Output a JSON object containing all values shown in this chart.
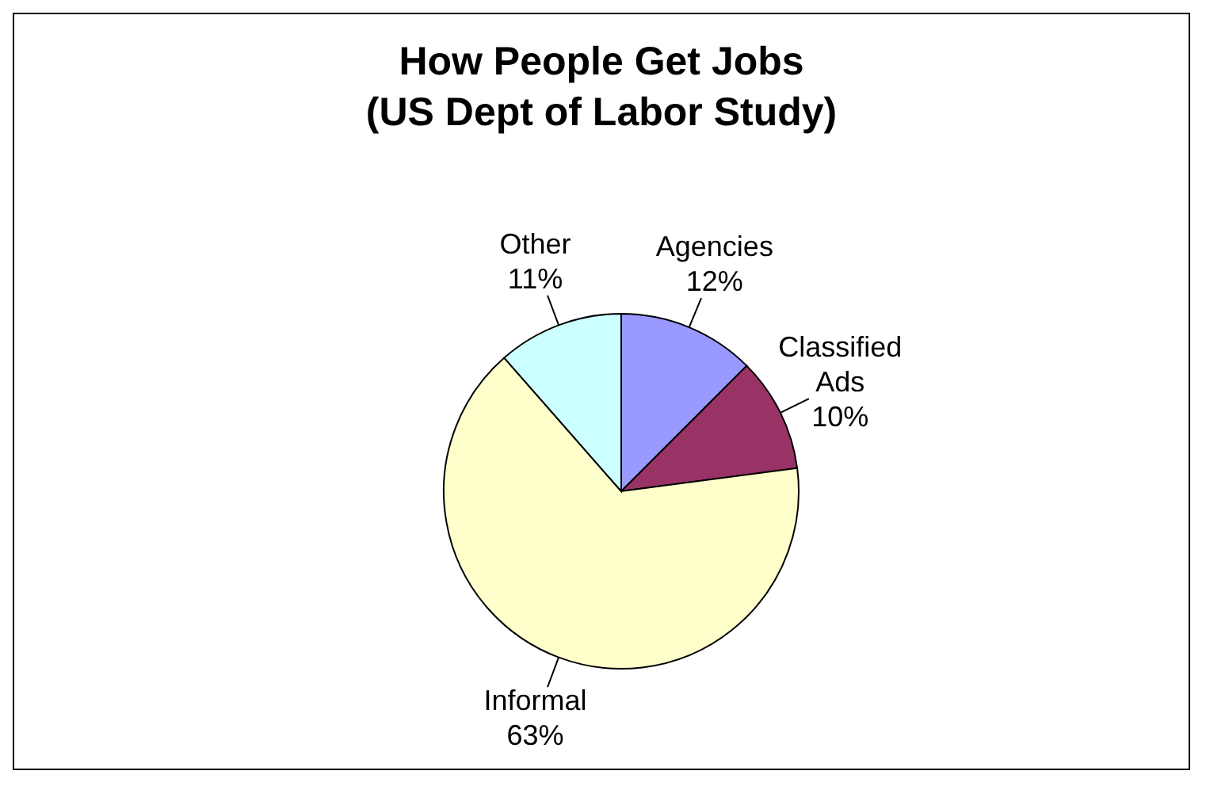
{
  "chart_data": {
    "type": "pie",
    "title": "How People Get Jobs\n(US Dept of Labor Study)",
    "categories": [
      "Agencies",
      "Classified Ads",
      "Informal",
      "Other"
    ],
    "values": [
      12,
      10,
      63,
      11
    ],
    "value_labels": [
      "12%",
      "10%",
      "63%",
      "11%"
    ],
    "colors": [
      "#9999ff",
      "#993366",
      "#ffffcc",
      "#ccffff"
    ],
    "legend": false
  }
}
